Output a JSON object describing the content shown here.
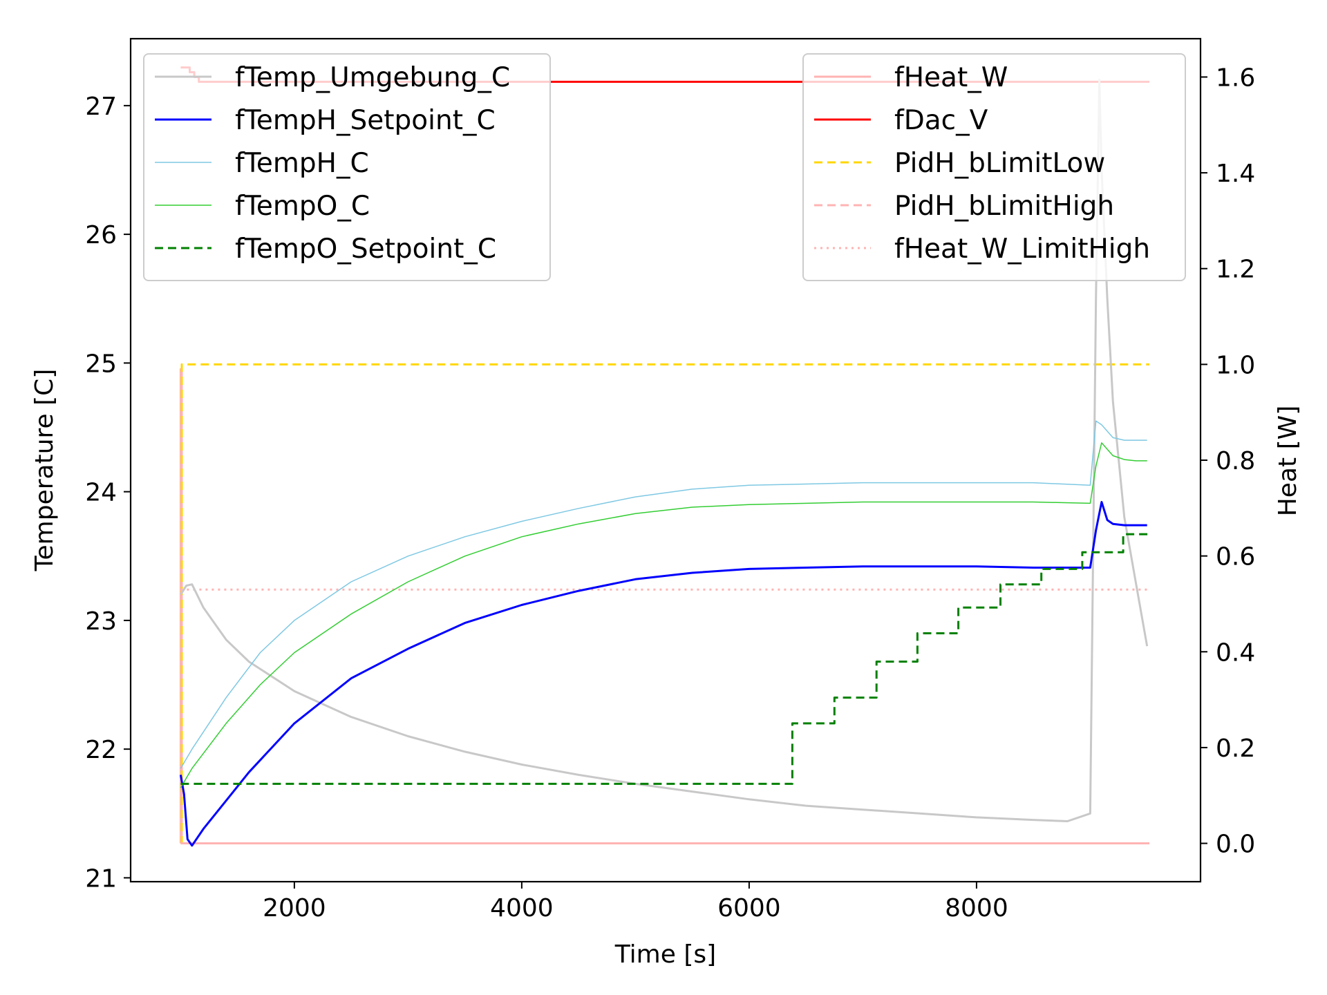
{
  "chart_data": {
    "type": "line",
    "xlabel": "Time [s]",
    "ylabel_left": "Temperature [C]",
    "ylabel_right": "Heat [W]",
    "xlim": [
      560,
      9970
    ],
    "ylim_left": [
      20.97,
      27.52
    ],
    "ylim_right": [
      -0.08,
      1.68
    ],
    "x_ticks": [
      2000,
      4000,
      6000,
      8000
    ],
    "y_ticks_left": [
      21,
      22,
      23,
      24,
      25,
      26,
      27
    ],
    "y_ticks_right": [
      "0.0",
      "0.2",
      "0.4",
      "0.6",
      "0.8",
      "1.0",
      "1.2",
      "1.4",
      "1.6"
    ],
    "grid": false,
    "legend_left": {
      "placement": "top-left",
      "entries": [
        {
          "label": "fTemp_Umgebung_C",
          "color": "#c8c8c8",
          "style": "solid",
          "width": 3
        },
        {
          "label": "fTempH_Setpoint_C",
          "color": "#0000ff",
          "style": "solid",
          "width": 3
        },
        {
          "label": "fTempH_C",
          "color": "#7ec8e3",
          "style": "solid",
          "width": 1.5
        },
        {
          "label": "fTempO_C",
          "color": "#32cd32",
          "style": "solid",
          "width": 1.5
        },
        {
          "label": "fTempO_Setpoint_C",
          "color": "#008000",
          "style": "dashed",
          "width": 3
        }
      ]
    },
    "legend_right": {
      "placement": "top-right",
      "entries": [
        {
          "label": "fHeat_W",
          "color": "#ffb3b3",
          "style": "solid",
          "width": 3
        },
        {
          "label": "fDac_V",
          "color": "#ff0000",
          "style": "solid",
          "width": 3
        },
        {
          "label": "PidH_bLimitLow",
          "color": "#ffd700",
          "style": "dashed",
          "width": 3
        },
        {
          "label": "PidH_bLimitHigh",
          "color": "#ffb3b3",
          "style": "dashed",
          "width": 3
        },
        {
          "label": "fHeat_W_LimitHigh",
          "color": "#ffb3b3",
          "style": "dotted",
          "width": 3
        }
      ]
    },
    "series_left": [
      {
        "name": "fTemp_Umgebung_C",
        "x": [
          1000,
          1050,
          1100,
          1200,
          1400,
          1600,
          2000,
          2500,
          3000,
          3500,
          4000,
          4500,
          5000,
          5500,
          6000,
          6500,
          7000,
          7500,
          8000,
          8500,
          8800,
          9000,
          9050,
          9080,
          9100,
          9150,
          9200,
          9300,
          9400,
          9500
        ],
        "y": [
          23.2,
          23.27,
          23.28,
          23.1,
          22.85,
          22.68,
          22.45,
          22.25,
          22.1,
          21.98,
          21.88,
          21.8,
          21.73,
          21.67,
          21.61,
          21.56,
          21.53,
          21.5,
          21.47,
          21.45,
          21.44,
          21.5,
          25.5,
          27.2,
          26.5,
          25.5,
          24.7,
          23.8,
          23.3,
          22.8
        ]
      },
      {
        "name": "fTempH_Setpoint_C",
        "x": [
          1000,
          1030,
          1060,
          1100,
          1200,
          1400,
          1600,
          2000,
          2500,
          3000,
          3500,
          4000,
          4500,
          5000,
          5500,
          6000,
          6500,
          7000,
          7500,
          8000,
          8500,
          9000,
          9050,
          9100,
          9150,
          9200,
          9300,
          9400,
          9500
        ],
        "y": [
          21.8,
          21.65,
          21.3,
          21.25,
          21.38,
          21.6,
          21.82,
          22.2,
          22.55,
          22.78,
          22.98,
          23.12,
          23.23,
          23.32,
          23.37,
          23.4,
          23.41,
          23.42,
          23.42,
          23.42,
          23.41,
          23.41,
          23.7,
          23.92,
          23.78,
          23.75,
          23.74,
          23.74,
          23.74
        ]
      },
      {
        "name": "fTempH_C",
        "x": [
          1000,
          1100,
          1400,
          1700,
          2000,
          2500,
          3000,
          3500,
          4000,
          4500,
          5000,
          5500,
          6000,
          6500,
          7000,
          7500,
          8000,
          8500,
          9000,
          9050,
          9100,
          9200,
          9300,
          9400,
          9500
        ],
        "y": [
          21.85,
          22.0,
          22.4,
          22.75,
          23.0,
          23.3,
          23.5,
          23.65,
          23.77,
          23.87,
          23.96,
          24.02,
          24.05,
          24.06,
          24.07,
          24.07,
          24.07,
          24.07,
          24.05,
          24.55,
          24.52,
          24.42,
          24.4,
          24.4,
          24.4
        ]
      },
      {
        "name": "fTempO_C",
        "x": [
          1000,
          1100,
          1400,
          1700,
          2000,
          2500,
          3000,
          3500,
          4000,
          4500,
          5000,
          5500,
          6000,
          6500,
          7000,
          7500,
          8000,
          8500,
          9000,
          9050,
          9100,
          9200,
          9300,
          9400,
          9500
        ],
        "y": [
          21.7,
          21.85,
          22.2,
          22.5,
          22.75,
          23.05,
          23.3,
          23.5,
          23.65,
          23.75,
          23.83,
          23.88,
          23.9,
          23.91,
          23.92,
          23.92,
          23.92,
          23.92,
          23.91,
          24.2,
          24.38,
          24.28,
          24.25,
          24.24,
          24.24
        ]
      },
      {
        "name": "fTempO_Setpoint_C",
        "x": [
          1000,
          6380,
          6380,
          6750,
          6750,
          7120,
          7120,
          7480,
          7480,
          7840,
          7840,
          8210,
          8210,
          8570,
          8570,
          8930,
          8930,
          9290,
          9290,
          9520
        ],
        "y": [
          21.73,
          21.73,
          22.2,
          22.2,
          22.4,
          22.4,
          22.68,
          22.68,
          22.9,
          22.9,
          23.1,
          23.1,
          23.28,
          23.28,
          23.4,
          23.4,
          23.53,
          23.53,
          23.67,
          23.67
        ]
      }
    ],
    "series_right": [
      {
        "name": "fHeat_W",
        "x": [
          1000,
          1000,
          1010,
          1010,
          9520
        ],
        "y": [
          0.0,
          0.99,
          0.99,
          0.0,
          0.0
        ]
      },
      {
        "name": "fDac_V",
        "x": [
          1000,
          1080,
          1080,
          1120,
          1120,
          1160,
          1160,
          9520
        ],
        "y": [
          1.62,
          1.62,
          1.61,
          1.61,
          1.6,
          1.6,
          1.59,
          1.59
        ]
      },
      {
        "name": "PidH_bLimitLow",
        "x": [
          1000,
          1010,
          1010,
          9520
        ],
        "y": [
          0.0,
          0.0,
          1.0,
          1.0
        ]
      },
      {
        "name": "PidH_bLimitHigh",
        "x": [
          1000,
          9520
        ],
        "y": [
          0.0,
          0.0
        ]
      },
      {
        "name": "fHeat_W_LimitHigh",
        "x": [
          1000,
          9520
        ],
        "y": [
          0.53,
          0.53
        ]
      }
    ]
  }
}
